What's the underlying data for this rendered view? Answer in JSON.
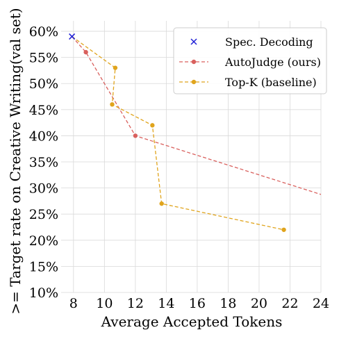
{
  "chart_data": {
    "type": "line",
    "title": "",
    "xlabel": "Average Accepted Tokens",
    "ylabel": ">= Target rate on Creative Writing(val set)",
    "xlim": [
      7.2,
      24
    ],
    "ylim": [
      10,
      62
    ],
    "xticks": [
      8,
      10,
      12,
      14,
      16,
      18,
      20,
      22,
      24
    ],
    "yticks": [
      10,
      15,
      20,
      25,
      30,
      35,
      40,
      45,
      50,
      55,
      60
    ],
    "ytick_suffix": "%",
    "grid": true,
    "legend": "top-right",
    "series": [
      {
        "name": "Spec. Decoding",
        "marker": "x",
        "linestyle": "none",
        "color": "#1f1fd6",
        "x": [
          7.9
        ],
        "y": [
          59
        ]
      },
      {
        "name": "AutoJudge (ours)",
        "marker": "circle",
        "linestyle": "dashed",
        "color": "#d9605d",
        "x": [
          7.9,
          8.8,
          12.0,
          24.5
        ],
        "y": [
          59,
          56,
          40,
          28.3
        ]
      },
      {
        "name": "Top-K (baseline)",
        "marker": "circle",
        "linestyle": "dashed",
        "color": "#e0a41c",
        "x": [
          7.9,
          10.7,
          10.5,
          13.1,
          13.7,
          21.6
        ],
        "y": [
          59,
          53,
          46,
          42,
          27,
          22
        ]
      }
    ],
    "markers_shown": {
      "AutoJudge (ours)": [
        1,
        2
      ],
      "Top-K (baseline)": [
        1,
        2,
        3,
        4,
        5
      ]
    }
  }
}
